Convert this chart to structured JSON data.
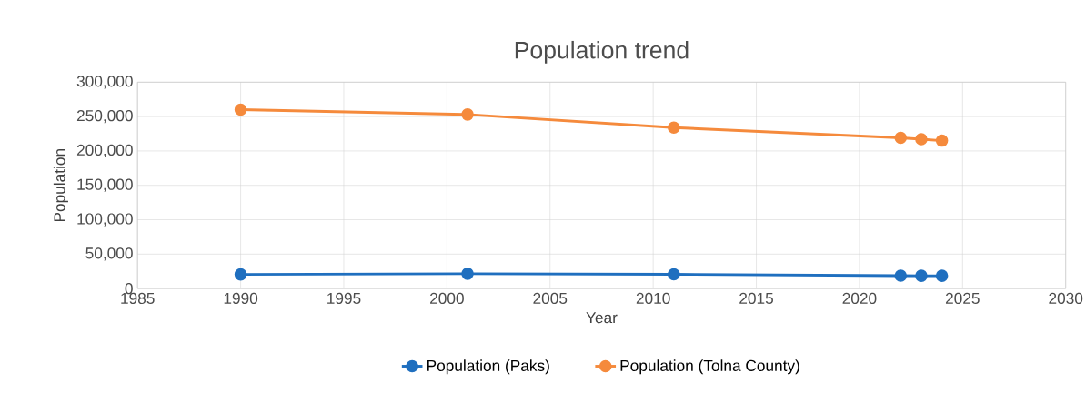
{
  "chart_data": {
    "type": "line",
    "title": "Population trend",
    "xlabel": "Year",
    "ylabel": "Population",
    "xlim": [
      1985,
      2030
    ],
    "xticks": [
      1985,
      1990,
      1995,
      2000,
      2005,
      2010,
      2015,
      2020,
      2025,
      2030
    ],
    "ylim": [
      0,
      300000
    ],
    "yticks": [
      {
        "value": 0,
        "label": "0"
      },
      {
        "value": 50000,
        "label": "50,000"
      },
      {
        "value": 100000,
        "label": "100,000"
      },
      {
        "value": 150000,
        "label": "150,000"
      },
      {
        "value": 200000,
        "label": "200,000"
      },
      {
        "value": 250000,
        "label": "250,000"
      },
      {
        "value": 300000,
        "label": "300,000"
      }
    ],
    "grid": true,
    "legend": "bottom",
    "marker": "circle",
    "line_style": "solid",
    "x": [
      1990,
      2001,
      2011,
      2022,
      2023,
      2024
    ],
    "series": [
      {
        "name": "Population (Paks)",
        "color": "#1f6fbf",
        "values": [
          20500,
          21500,
          20700,
          18700,
          18500,
          18500
        ]
      },
      {
        "name": "Population (Tolna County)",
        "color": "#f58a3c",
        "values": [
          260000,
          253000,
          234000,
          219000,
          217000,
          215000
        ]
      }
    ]
  }
}
